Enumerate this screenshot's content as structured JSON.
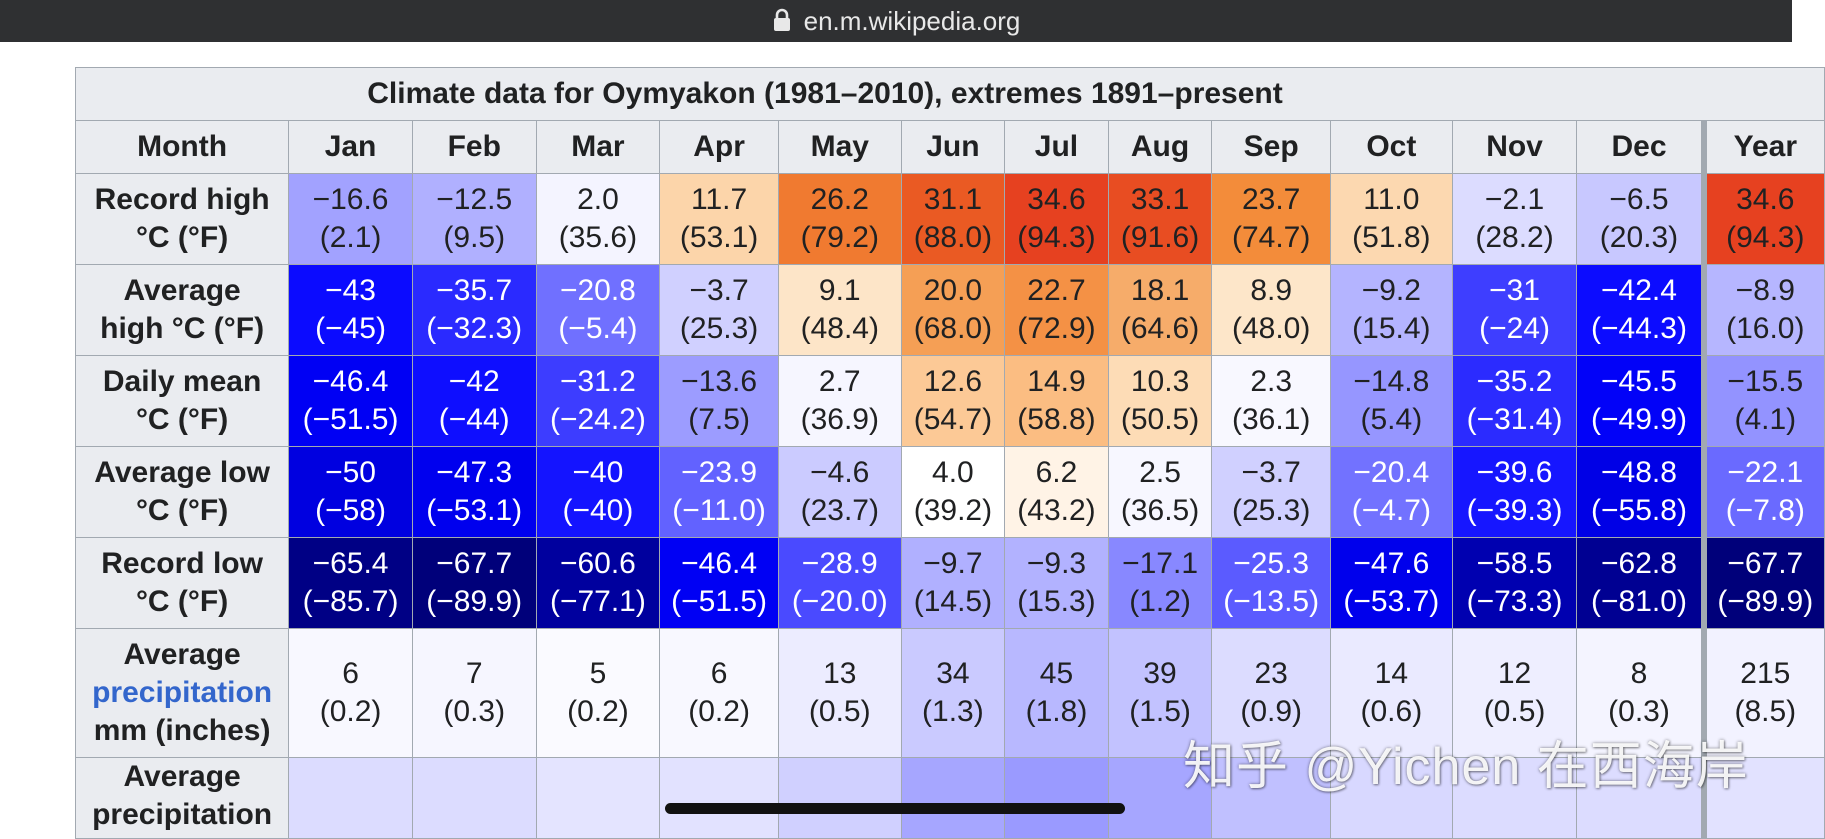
{
  "browser": {
    "url": "en.m.wikipedia.org"
  },
  "climate_table": {
    "caption": "Climate data for Oymyakon (1981–2010), extremes 1891–present",
    "month_label": "Month",
    "months": [
      "Jan",
      "Feb",
      "Mar",
      "Apr",
      "May",
      "Jun",
      "Jul",
      "Aug",
      "Sep",
      "Oct",
      "Nov",
      "Dec",
      "Year"
    ],
    "rows": [
      {
        "label": "Record high °C (°F)",
        "label_line1": "Record high",
        "label_line2": "°C (°F)",
        "cells": [
          {
            "c": "−16.6",
            "f": "(2.1)",
            "bg": "#a2a2ff",
            "fg": "#202122"
          },
          {
            "c": "−12.5",
            "f": "(9.5)",
            "bg": "#b0b0ff",
            "fg": "#202122"
          },
          {
            "c": "2.0",
            "f": "(35.6)",
            "bg": "#f4f4ff",
            "fg": "#202122"
          },
          {
            "c": "11.7",
            "f": "(53.1)",
            "bg": "#fcd5aa",
            "fg": "#202122"
          },
          {
            "c": "26.2",
            "f": "(79.2)",
            "bg": "#f07a30",
            "fg": "#202122"
          },
          {
            "c": "31.1",
            "f": "(88.0)",
            "bg": "#ea5a23",
            "fg": "#202122"
          },
          {
            "c": "34.6",
            "f": "(94.3)",
            "bg": "#e64120",
            "fg": "#202122"
          },
          {
            "c": "33.1",
            "f": "(91.6)",
            "bg": "#e84d22",
            "fg": "#202122"
          },
          {
            "c": "23.7",
            "f": "(74.7)",
            "bg": "#f38c3a",
            "fg": "#202122"
          },
          {
            "c": "11.0",
            "f": "(51.8)",
            "bg": "#fcd8b0",
            "fg": "#202122"
          },
          {
            "c": "−2.1",
            "f": "(28.2)",
            "bg": "#dcdcff",
            "fg": "#202122"
          },
          {
            "c": "−6.5",
            "f": "(20.3)",
            "bg": "#c8c8ff",
            "fg": "#202122"
          },
          {
            "c": "34.6",
            "f": "(94.3)",
            "bg": "#e64120",
            "fg": "#202122"
          }
        ]
      },
      {
        "label": "Average high °C (°F)",
        "label_line1": "Average",
        "label_line2": "high °C (°F)",
        "cells": [
          {
            "c": "−43",
            "f": "(−45)",
            "bg": "#0b0bff",
            "fg": "#ffffff"
          },
          {
            "c": "−35.7",
            "f": "(−32.3)",
            "bg": "#2a2aff",
            "fg": "#ffffff"
          },
          {
            "c": "−20.8",
            "f": "(−5.4)",
            "bg": "#7070ff",
            "fg": "#ffffff"
          },
          {
            "c": "−3.7",
            "f": "(25.3)",
            "bg": "#d0d0ff",
            "fg": "#202122"
          },
          {
            "c": "9.1",
            "f": "(48.4)",
            "bg": "#fde5c8",
            "fg": "#202122"
          },
          {
            "c": "20.0",
            "f": "(68.0)",
            "bg": "#f59f55",
            "fg": "#202122"
          },
          {
            "c": "22.7",
            "f": "(72.9)",
            "bg": "#f49145",
            "fg": "#202122"
          },
          {
            "c": "18.1",
            "f": "(64.6)",
            "bg": "#f6ac6a",
            "fg": "#202122"
          },
          {
            "c": "8.9",
            "f": "(48.0)",
            "bg": "#fde6c9",
            "fg": "#202122"
          },
          {
            "c": "−9.2",
            "f": "(15.4)",
            "bg": "#b4b4ff",
            "fg": "#202122"
          },
          {
            "c": "−31",
            "f": "(−24)",
            "bg": "#3e3eff",
            "fg": "#ffffff"
          },
          {
            "c": "−42.4",
            "f": "(−44.3)",
            "bg": "#0c0cff",
            "fg": "#ffffff"
          },
          {
            "c": "−8.9",
            "f": "(16.0)",
            "bg": "#b6b6ff",
            "fg": "#202122"
          }
        ]
      },
      {
        "label": "Daily mean °C (°F)",
        "label_line1": "Daily mean",
        "label_line2": "°C (°F)",
        "cells": [
          {
            "c": "−46.4",
            "f": "(−51.5)",
            "bg": "#0000f4",
            "fg": "#ffffff"
          },
          {
            "c": "−42",
            "f": "(−44)",
            "bg": "#0e0eff",
            "fg": "#ffffff"
          },
          {
            "c": "−31.2",
            "f": "(−24.2)",
            "bg": "#3d3dff",
            "fg": "#ffffff"
          },
          {
            "c": "−13.6",
            "f": "(7.5)",
            "bg": "#9c9cff",
            "fg": "#202122"
          },
          {
            "c": "2.7",
            "f": "(36.9)",
            "bg": "#f6f6ff",
            "fg": "#202122"
          },
          {
            "c": "12.6",
            "f": "(54.7)",
            "bg": "#fcc996",
            "fg": "#202122"
          },
          {
            "c": "14.9",
            "f": "(58.8)",
            "bg": "#fbbd82",
            "fg": "#202122"
          },
          {
            "c": "10.3",
            "f": "(50.5)",
            "bg": "#fddcb6",
            "fg": "#202122"
          },
          {
            "c": "2.3",
            "f": "(36.1)",
            "bg": "#f8f8ff",
            "fg": "#202122"
          },
          {
            "c": "−14.8",
            "f": "(5.4)",
            "bg": "#9696ff",
            "fg": "#202122"
          },
          {
            "c": "−35.2",
            "f": "(−31.4)",
            "bg": "#2b2bff",
            "fg": "#ffffff"
          },
          {
            "c": "−45.5",
            "f": "(−49.9)",
            "bg": "#0202f8",
            "fg": "#ffffff"
          },
          {
            "c": "−15.5",
            "f": "(4.1)",
            "bg": "#9393ff",
            "fg": "#202122"
          }
        ]
      },
      {
        "label": "Average low °C (°F)",
        "label_line1": "Average low",
        "label_line2": "°C (°F)",
        "cells": [
          {
            "c": "−50",
            "f": "(−58)",
            "bg": "#0000e0",
            "fg": "#ffffff"
          },
          {
            "c": "−47.3",
            "f": "(−53.1)",
            "bg": "#0000ee",
            "fg": "#ffffff"
          },
          {
            "c": "−40",
            "f": "(−40)",
            "bg": "#1414ff",
            "fg": "#ffffff"
          },
          {
            "c": "−23.9",
            "f": "(−11.0)",
            "bg": "#6262ff",
            "fg": "#ffffff"
          },
          {
            "c": "−4.6",
            "f": "(23.7)",
            "bg": "#cbcbff",
            "fg": "#202122"
          },
          {
            "c": "4.0",
            "f": "(39.2)",
            "bg": "#ffffff",
            "fg": "#202122"
          },
          {
            "c": "6.2",
            "f": "(43.2)",
            "bg": "#fff3e6",
            "fg": "#202122"
          },
          {
            "c": "2.5",
            "f": "(36.5)",
            "bg": "#f7f7ff",
            "fg": "#202122"
          },
          {
            "c": "−3.7",
            "f": "(25.3)",
            "bg": "#d0d0ff",
            "fg": "#202122"
          },
          {
            "c": "−20.4",
            "f": "(−4.7)",
            "bg": "#7272ff",
            "fg": "#ffffff"
          },
          {
            "c": "−39.6",
            "f": "(−39.3)",
            "bg": "#1616ff",
            "fg": "#ffffff"
          },
          {
            "c": "−48.8",
            "f": "(−55.8)",
            "bg": "#0000e6",
            "fg": "#ffffff"
          },
          {
            "c": "−22.1",
            "f": "(−7.8)",
            "bg": "#6a6aff",
            "fg": "#ffffff"
          }
        ]
      },
      {
        "label": "Record low °C (°F)",
        "label_line1": "Record low",
        "label_line2": "°C (°F)",
        "cells": [
          {
            "c": "−65.4",
            "f": "(−85.7)",
            "bg": "#000085",
            "fg": "#ffffff"
          },
          {
            "c": "−67.7",
            "f": "(−89.9)",
            "bg": "#00007a",
            "fg": "#ffffff"
          },
          {
            "c": "−60.6",
            "f": "(−77.1)",
            "bg": "#00009e",
            "fg": "#ffffff"
          },
          {
            "c": "−46.4",
            "f": "(−51.5)",
            "bg": "#0000f4",
            "fg": "#ffffff"
          },
          {
            "c": "−28.9",
            "f": "(−20.0)",
            "bg": "#4a4aff",
            "fg": "#ffffff"
          },
          {
            "c": "−9.7",
            "f": "(14.5)",
            "bg": "#b0b0ff",
            "fg": "#202122"
          },
          {
            "c": "−9.3",
            "f": "(15.3)",
            "bg": "#b2b2ff",
            "fg": "#202122"
          },
          {
            "c": "−17.1",
            "f": "(1.2)",
            "bg": "#8888ff",
            "fg": "#202122"
          },
          {
            "c": "−25.3",
            "f": "(−13.5)",
            "bg": "#5b5bff",
            "fg": "#ffffff"
          },
          {
            "c": "−47.6",
            "f": "(−53.7)",
            "bg": "#0000ec",
            "fg": "#ffffff"
          },
          {
            "c": "−58.5",
            "f": "(−73.3)",
            "bg": "#0000b0",
            "fg": "#ffffff"
          },
          {
            "c": "−62.8",
            "f": "(−81.0)",
            "bg": "#000092",
            "fg": "#ffffff"
          },
          {
            "c": "−67.7",
            "f": "(−89.9)",
            "bg": "#00007a",
            "fg": "#ffffff"
          }
        ]
      }
    ],
    "precip_row": {
      "label_line1": "Average",
      "label_link": "precipitation",
      "label_line3": "mm (inches)",
      "cells": [
        {
          "mm": "6",
          "in": "(0.2)",
          "bg": "#f8f8ff"
        },
        {
          "mm": "7",
          "in": "(0.3)",
          "bg": "#f6f6ff"
        },
        {
          "mm": "5",
          "in": "(0.2)",
          "bg": "#fafaff"
        },
        {
          "mm": "6",
          "in": "(0.2)",
          "bg": "#f8f8ff"
        },
        {
          "mm": "13",
          "in": "(0.5)",
          "bg": "#ececff"
        },
        {
          "mm": "34",
          "in": "(1.3)",
          "bg": "#cacaff"
        },
        {
          "mm": "45",
          "in": "(1.8)",
          "bg": "#b8b8ff"
        },
        {
          "mm": "39",
          "in": "(1.5)",
          "bg": "#c2c2ff"
        },
        {
          "mm": "23",
          "in": "(0.9)",
          "bg": "#dcdcff"
        },
        {
          "mm": "14",
          "in": "(0.6)",
          "bg": "#eaeaff"
        },
        {
          "mm": "12",
          "in": "(0.5)",
          "bg": "#eeeeff"
        },
        {
          "mm": "8",
          "in": "(0.3)",
          "bg": "#f4f4ff"
        },
        {
          "mm": "215",
          "in": "(8.5)",
          "bg": "#f2f2ff"
        }
      ]
    },
    "partial_row": {
      "label_line1": "Average",
      "label_line2": "precipitation",
      "cell_colors": [
        "#dcdcff",
        "#dcdcff",
        "#e4e4ff",
        "#e2e2ff",
        "#d0d0ff",
        "#a6a6ff",
        "#9a9aff",
        "#a6a6ff",
        "#c0c0ff",
        "#d8d8ff",
        "#dcdcff",
        "#dcdcff",
        "#e2e2ff"
      ]
    }
  },
  "watermark": "知乎 @Yichen 在西海岸"
}
